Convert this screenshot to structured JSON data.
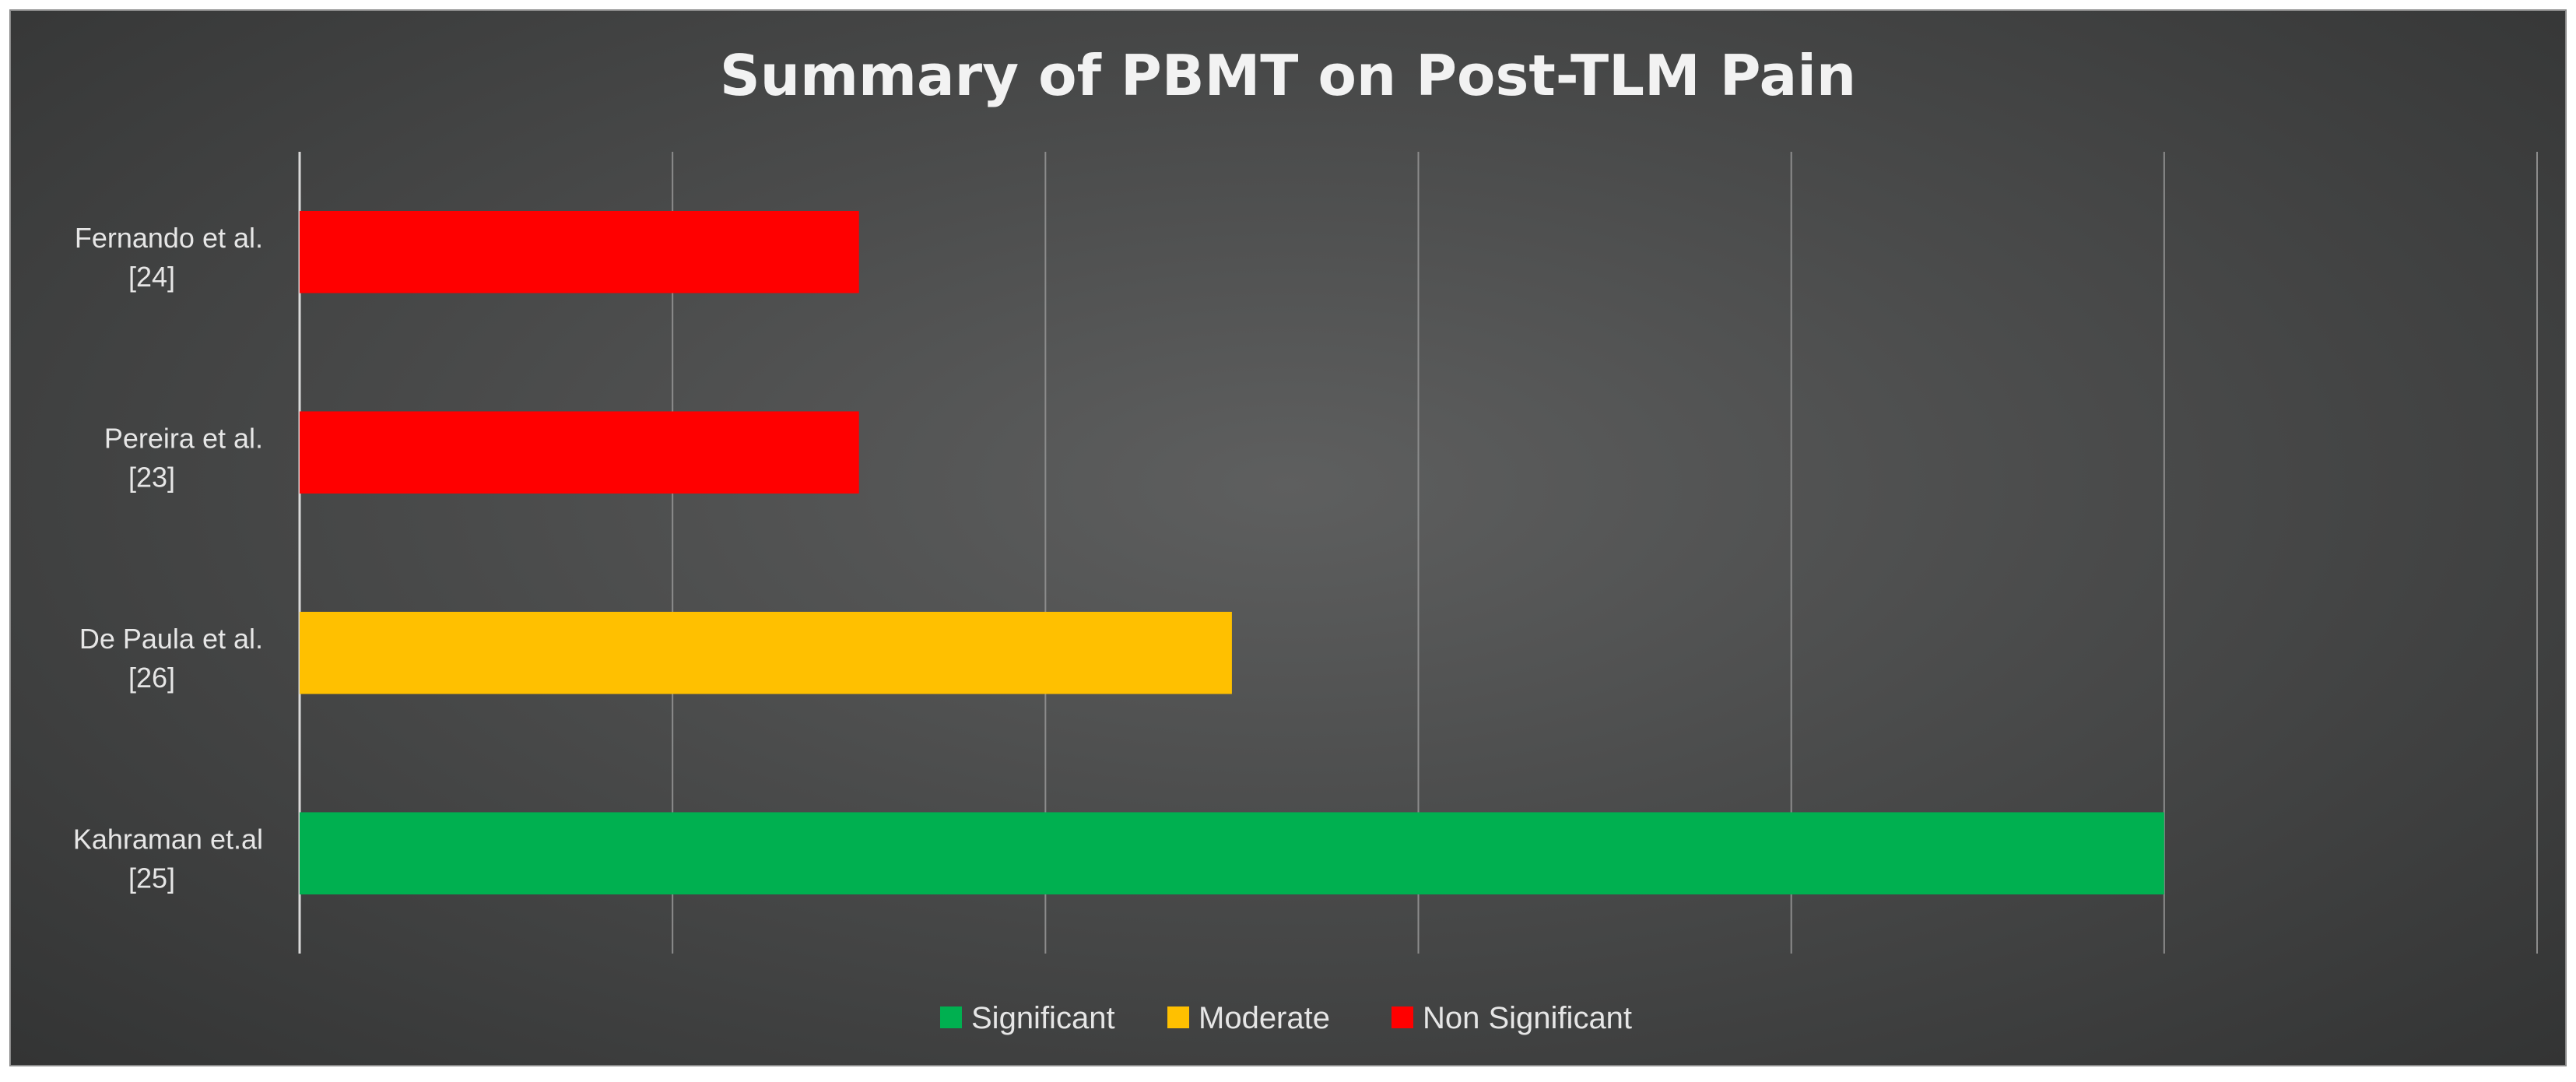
{
  "chart_data": {
    "type": "bar",
    "orientation": "horizontal",
    "title": "Summary of PBMT on Post-TLM Pain",
    "xlabel": "",
    "ylabel": "",
    "xlim": [
      0,
      6
    ],
    "grid": true,
    "legend_position": "bottom",
    "categories": [
      {
        "line1": "Fernando et al.",
        "line2": "[24]"
      },
      {
        "line1": "Pereira et al.",
        "line2": "[23]"
      },
      {
        "line1": "De Paula et al.",
        "line2": "[26]"
      },
      {
        "line1": "Kahraman et.al",
        "line2": "[25]"
      }
    ],
    "values": [
      1.5,
      1.5,
      2.5,
      5
    ],
    "value_classes": [
      "Non Significant",
      "Non Significant",
      "Moderate",
      "Significant"
    ],
    "legend": [
      {
        "label": "Significant",
        "color": "#00b050"
      },
      {
        "label": "Moderate",
        "color": "#ffc000"
      },
      {
        "label": "Non Significant",
        "color": "#ff0000"
      }
    ]
  }
}
